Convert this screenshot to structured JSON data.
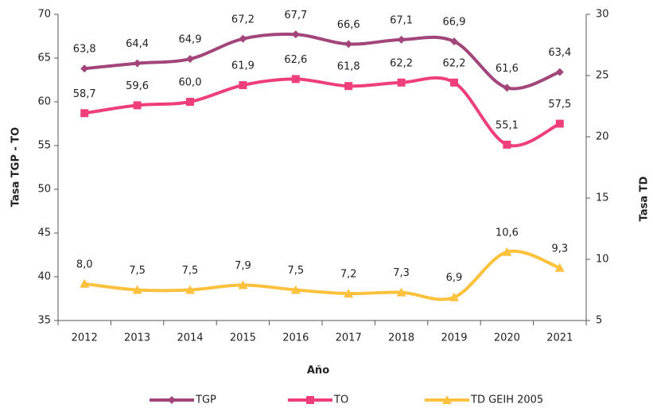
{
  "chart_data": {
    "type": "line",
    "x_label": "Año",
    "y_label": "Tasa TGP - TO",
    "y2_label": "Tasa TD",
    "categories": [
      "2012",
      "2013",
      "2014",
      "2015",
      "2016",
      "2017",
      "2018",
      "2019",
      "2020",
      "2021"
    ],
    "ylim": [
      35,
      70
    ],
    "yticks": [
      35,
      40,
      45,
      50,
      55,
      60,
      65,
      70
    ],
    "y2lim": [
      5,
      30
    ],
    "y2ticks": [
      5,
      10,
      15,
      20,
      25,
      30
    ],
    "series": [
      {
        "name": "TGP",
        "color": "#a1457a",
        "marker": "diamond",
        "values": [
          63.8,
          64.4,
          64.9,
          67.2,
          67.7,
          66.6,
          67.1,
          66.9,
          61.6,
          63.4
        ],
        "value_labels": [
          "63,8",
          "64,4",
          "64,9",
          "67,2",
          "67,7",
          "66,6",
          "67,1",
          "66,9",
          "61,6",
          "63,4"
        ]
      },
      {
        "name": "TO",
        "color": "#ee3f7b",
        "marker": "square",
        "values": [
          58.7,
          59.6,
          60.0,
          61.9,
          62.6,
          61.8,
          62.2,
          62.2,
          55.1,
          57.5
        ],
        "value_labels": [
          "58,7",
          "59,6",
          "60,0",
          "61,9",
          "62,6",
          "61,8",
          "62,2",
          "62,2",
          "55,1",
          "57,5"
        ]
      },
      {
        "name": "TD GEIH 2005",
        "color": "#fdc13d",
        "marker": "triangle",
        "axis": "y2",
        "values": [
          8.0,
          7.5,
          7.5,
          7.9,
          7.5,
          7.2,
          7.3,
          6.9,
          10.6,
          9.3
        ],
        "value_labels": [
          "8,0",
          "7,5",
          "7,5",
          "7,9",
          "7,5",
          "7,2",
          "7,3",
          "6,9",
          "10,6",
          "9,3"
        ]
      }
    ]
  }
}
